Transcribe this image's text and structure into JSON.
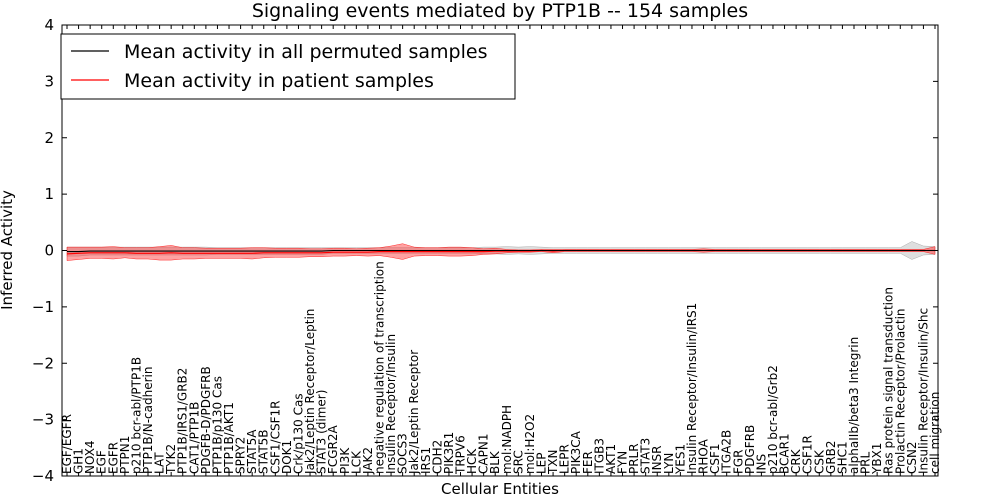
{
  "chart_data": {
    "type": "line",
    "title": "Signaling events mediated by PTP1B -- 154 samples",
    "xlabel": "Cellular Entities",
    "ylabel": "Inferred Activity",
    "ylim": [
      -4,
      4
    ],
    "yticks": [
      -4,
      -3,
      -2,
      -1,
      0,
      1,
      2,
      3,
      4
    ],
    "ytick_labels": [
      "−4",
      "−3",
      "−2",
      "−1",
      "0",
      "1",
      "2",
      "3",
      "4"
    ],
    "legend": {
      "location": "top-left",
      "entries": [
        {
          "label": "Mean activity in all permuted samples",
          "color": "#000000"
        },
        {
          "label": "Mean activity in patient samples",
          "color": "#ff0000"
        }
      ]
    },
    "categories": [
      "EGF/EGFR",
      "GH1",
      "NOX4",
      "EGF",
      "EGFR",
      "PTPN1",
      "p210 bcr-abl/PTP1B",
      "PTP1B/N-cadherin",
      "LAT",
      "TYK2",
      "PTP1B/IRS1/GRB2",
      "CAT1/PTP1B",
      "PDGFB-D/PDGFRB",
      "PTP1B/p130 Cas",
      "PTP1B/AKT1",
      "SPRY2",
      "STAT5A",
      "STAT5B",
      "CSF1/CSF1R",
      "DOK1",
      "Crk/p130 Cas",
      "Jak2/Leptin Receptor/Leptin",
      "STAT3 (dimer)",
      "FCGR2A",
      "PI3K",
      "LCK",
      "JAK2",
      "negative regulation of transcription",
      "Insulin Receptor/Insulin",
      "SOCS3",
      "Jak2/Leptin Receptor",
      "IRS1",
      "CDH2",
      "PIK3R1",
      "TRPV6",
      "HCK",
      "CAPN1",
      "BLK",
      "mol:NADPH",
      "SRC",
      "mol:H2O2",
      "LEP",
      "TXN",
      "LEPR",
      "PIK3CA",
      "FER",
      "ITGB3",
      "AKT1",
      "FYN",
      "PRLR",
      "STAT3",
      "INSR",
      "LYN",
      "YES1",
      "Insulin Receptor/Insulin/IRS1",
      "RHOA",
      "CSF1",
      "ITGA2B",
      "FGR",
      "PDGFRB",
      "INS",
      "p210 bcr-abl/Grb2",
      "BCAR1",
      "CRK",
      "CSF1R",
      "CSK",
      "GRB2",
      "SHC1",
      "alphaIIb/beta3 Integrin",
      "PRL",
      "YBX1",
      "Ras protein signal transduction",
      "Prolactin Receptor/Prolactin",
      "CSN2",
      "Insulin Receptor/Insulin/Shc",
      "cell migration"
    ],
    "series": [
      {
        "name": "Mean activity in all permuted samples",
        "color": "#000000",
        "values": [
          -0.02,
          -0.02,
          -0.01,
          -0.01,
          -0.01,
          -0.01,
          -0.01,
          -0.01,
          -0.01,
          -0.01,
          -0.01,
          -0.01,
          -0.01,
          -0.01,
          -0.01,
          -0.01,
          -0.01,
          -0.01,
          -0.01,
          -0.01,
          -0.01,
          -0.01,
          -0.01,
          0.0,
          0.0,
          0.0,
          0.0,
          0.0,
          0.0,
          0.0,
          0.0,
          0.0,
          0.0,
          0.0,
          0.0,
          0.0,
          0.0,
          0.0,
          0.0,
          0.0,
          0.0,
          0.0,
          0.0,
          0.0,
          0.0,
          0.0,
          0.0,
          0.0,
          0.0,
          0.0,
          0.0,
          0.0,
          0.0,
          0.0,
          0.0,
          0.0,
          0.0,
          0.0,
          0.0,
          0.0,
          0.0,
          0.0,
          0.0,
          0.0,
          0.0,
          0.0,
          0.0,
          0.0,
          0.0,
          0.0,
          0.0,
          0.0,
          0.0,
          0.0,
          0.0,
          0.0
        ],
        "band": 0.03
      },
      {
        "name": "Mean activity in patient samples",
        "color": "#ff0000",
        "values": [
          -0.06,
          -0.05,
          -0.04,
          -0.04,
          -0.04,
          -0.04,
          -0.05,
          -0.05,
          -0.05,
          -0.04,
          -0.05,
          -0.05,
          -0.05,
          -0.05,
          -0.05,
          -0.05,
          -0.05,
          -0.04,
          -0.04,
          -0.04,
          -0.04,
          -0.04,
          -0.04,
          -0.03,
          -0.03,
          -0.03,
          -0.03,
          -0.02,
          -0.02,
          -0.02,
          -0.02,
          -0.02,
          -0.02,
          -0.02,
          -0.02,
          -0.02,
          -0.02,
          -0.01,
          -0.01,
          -0.01,
          -0.01,
          0.0,
          -0.01,
          0.0,
          0.0,
          0.0,
          0.0,
          0.0,
          0.0,
          0.0,
          0.0,
          0.0,
          0.0,
          0.0,
          0.0,
          0.0,
          0.0,
          0.0,
          0.0,
          0.0,
          0.0,
          0.0,
          0.0,
          0.0,
          0.0,
          0.0,
          0.0,
          0.0,
          0.0,
          0.0,
          0.0,
          0.0,
          0.0,
          0.0,
          0.0,
          0.0
        ],
        "band": [
          0.12,
          0.11,
          0.1,
          0.1,
          0.11,
          0.09,
          0.1,
          0.1,
          0.12,
          0.13,
          0.1,
          0.1,
          0.09,
          0.09,
          0.09,
          0.09,
          0.1,
          0.09,
          0.08,
          0.08,
          0.08,
          0.07,
          0.07,
          0.07,
          0.07,
          0.06,
          0.07,
          0.07,
          0.1,
          0.14,
          0.08,
          0.07,
          0.07,
          0.08,
          0.08,
          0.07,
          0.05,
          0.05,
          0.03,
          0.02,
          0.02,
          0.02,
          0.03,
          0.02,
          0.02,
          0.02,
          0.02,
          0.02,
          0.02,
          0.02,
          0.02,
          0.02,
          0.02,
          0.02,
          0.02,
          0.03,
          0.02,
          0.02,
          0.02,
          0.02,
          0.02,
          0.02,
          0.02,
          0.02,
          0.02,
          0.02,
          0.02,
          0.02,
          0.02,
          0.02,
          0.02,
          0.02,
          0.02,
          0.02,
          0.02,
          0.07
        ]
      }
    ],
    "grey_band": [
      0.08,
      0.08,
      0.07,
      0.07,
      0.07,
      0.07,
      0.07,
      0.07,
      0.07,
      0.07,
      0.07,
      0.07,
      0.07,
      0.06,
      0.06,
      0.06,
      0.06,
      0.06,
      0.06,
      0.06,
      0.06,
      0.06,
      0.06,
      0.05,
      0.05,
      0.05,
      0.05,
      0.05,
      0.05,
      0.05,
      0.05,
      0.05,
      0.05,
      0.05,
      0.05,
      0.05,
      0.06,
      0.06,
      0.07,
      0.06,
      0.07,
      0.06,
      0.05,
      0.05,
      0.05,
      0.05,
      0.05,
      0.05,
      0.05,
      0.05,
      0.05,
      0.05,
      0.05,
      0.05,
      0.05,
      0.05,
      0.05,
      0.05,
      0.05,
      0.05,
      0.05,
      0.05,
      0.05,
      0.05,
      0.05,
      0.05,
      0.05,
      0.05,
      0.05,
      0.05,
      0.05,
      0.05,
      0.05,
      0.16,
      0.08,
      0.07
    ]
  }
}
